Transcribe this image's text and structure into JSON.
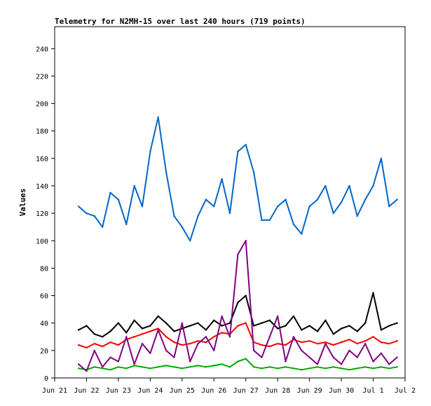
{
  "chart_data": {
    "type": "line",
    "title": "Telemetry for N2MH-15 over last 240 hours (719 points)",
    "ylabel": "Values",
    "xlabel": "",
    "ylim": [
      0,
      256
    ],
    "yticks": [
      0,
      20,
      40,
      60,
      80,
      100,
      120,
      140,
      160,
      180,
      200,
      220,
      240
    ],
    "xlim": [
      0,
      11
    ],
    "xtick_labels": [
      "Jun 21",
      "Jun 22",
      "Jun 23",
      "Jun 24",
      "Jun 25",
      "Jun 26",
      "Jun 27",
      "Jun 28",
      "Jun 29",
      "Jun 30",
      "Jul 1",
      "Jul 2"
    ],
    "grid": false,
    "colors": {
      "blue": "#0066cc",
      "black": "#000000",
      "red": "#ff0000",
      "green": "#00aa00",
      "purple": "#800080",
      "axis": "#000000"
    },
    "series": [
      {
        "color": "#0066cc",
        "x": [
          0.75,
          1.0,
          1.25,
          1.5,
          1.75,
          2.0,
          2.25,
          2.5,
          2.75,
          3.0,
          3.25,
          3.5,
          3.75,
          4.0,
          4.25,
          4.5,
          4.75,
          5.0,
          5.25,
          5.5,
          5.75,
          6.0,
          6.25,
          6.5,
          6.75,
          7.0,
          7.25,
          7.5,
          7.75,
          8.0,
          8.25,
          8.5,
          8.75,
          9.0,
          9.25,
          9.5,
          9.75,
          10.0,
          10.25,
          10.5,
          10.75
        ],
        "values": [
          125,
          120,
          118,
          110,
          135,
          130,
          112,
          140,
          125,
          165,
          190,
          150,
          118,
          110,
          100,
          118,
          130,
          125,
          145,
          120,
          165,
          170,
          150,
          115,
          115,
          125,
          130,
          112,
          105,
          125,
          130,
          140,
          120,
          128,
          140,
          118,
          130,
          140,
          160,
          125,
          130
        ]
      },
      {
        "color": "#000000",
        "x": [
          0.75,
          1.0,
          1.25,
          1.5,
          1.75,
          2.0,
          2.25,
          2.5,
          2.75,
          3.0,
          3.25,
          3.5,
          3.75,
          4.0,
          4.25,
          4.5,
          4.75,
          5.0,
          5.25,
          5.5,
          5.75,
          6.0,
          6.25,
          6.5,
          6.75,
          7.0,
          7.25,
          7.5,
          7.75,
          8.0,
          8.25,
          8.5,
          8.75,
          9.0,
          9.25,
          9.5,
          9.75,
          10.0,
          10.25,
          10.5,
          10.75
        ],
        "values": [
          35,
          38,
          32,
          30,
          34,
          40,
          33,
          42,
          36,
          38,
          45,
          40,
          34,
          36,
          38,
          40,
          35,
          42,
          38,
          40,
          55,
          60,
          38,
          40,
          42,
          36,
          38,
          45,
          35,
          38,
          34,
          42,
          32,
          36,
          38,
          34,
          40,
          62,
          35,
          38,
          40
        ]
      },
      {
        "color": "#ff0000",
        "x": [
          0.75,
          1.0,
          1.25,
          1.5,
          1.75,
          2.0,
          2.25,
          2.5,
          2.75,
          3.0,
          3.25,
          3.5,
          3.75,
          4.0,
          4.25,
          4.5,
          4.75,
          5.0,
          5.25,
          5.5,
          5.75,
          6.0,
          6.25,
          6.5,
          6.75,
          7.0,
          7.25,
          7.5,
          7.75,
          8.0,
          8.25,
          8.5,
          8.75,
          9.0,
          9.25,
          9.5,
          9.75,
          10.0,
          10.25,
          10.5,
          10.75
        ],
        "values": [
          24,
          22,
          25,
          23,
          26,
          24,
          28,
          30,
          32,
          34,
          36,
          30,
          26,
          24,
          25,
          27,
          26,
          30,
          33,
          32,
          38,
          40,
          26,
          24,
          23,
          25,
          24,
          28,
          26,
          27,
          25,
          26,
          24,
          26,
          28,
          25,
          27,
          30,
          26,
          25,
          27
        ]
      },
      {
        "color": "#00aa00",
        "x": [
          0.75,
          1.0,
          1.25,
          1.5,
          1.75,
          2.0,
          2.25,
          2.5,
          2.75,
          3.0,
          3.25,
          3.5,
          3.75,
          4.0,
          4.25,
          4.5,
          4.75,
          5.0,
          5.25,
          5.5,
          5.75,
          6.0,
          6.25,
          6.5,
          6.75,
          7.0,
          7.25,
          7.5,
          7.75,
          8.0,
          8.25,
          8.5,
          8.75,
          9.0,
          9.25,
          9.5,
          9.75,
          10.0,
          10.25,
          10.5,
          10.75
        ],
        "values": [
          7,
          6,
          8,
          7,
          6,
          8,
          7,
          9,
          8,
          7,
          8,
          9,
          8,
          7,
          8,
          9,
          8,
          9,
          10,
          8,
          12,
          14,
          8,
          7,
          8,
          7,
          8,
          7,
          6,
          7,
          8,
          7,
          8,
          7,
          6,
          7,
          8,
          7,
          8,
          7,
          8
        ]
      },
      {
        "color": "#800080",
        "x": [
          0.75,
          1.0,
          1.25,
          1.5,
          1.75,
          2.0,
          2.25,
          2.5,
          2.75,
          3.0,
          3.25,
          3.5,
          3.75,
          4.0,
          4.25,
          4.5,
          4.75,
          5.0,
          5.25,
          5.5,
          5.75,
          6.0,
          6.25,
          6.5,
          6.75,
          7.0,
          7.25,
          7.5,
          7.75,
          8.0,
          8.25,
          8.5,
          8.75,
          9.0,
          9.25,
          9.5,
          9.75,
          10.0,
          10.25,
          10.5,
          10.75
        ],
        "values": [
          10,
          5,
          20,
          8,
          15,
          12,
          30,
          10,
          25,
          18,
          35,
          20,
          15,
          40,
          12,
          25,
          30,
          20,
          45,
          30,
          90,
          100,
          20,
          15,
          30,
          45,
          12,
          30,
          20,
          15,
          10,
          25,
          15,
          10,
          20,
          15,
          25,
          12,
          18,
          10,
          15
        ]
      }
    ]
  }
}
